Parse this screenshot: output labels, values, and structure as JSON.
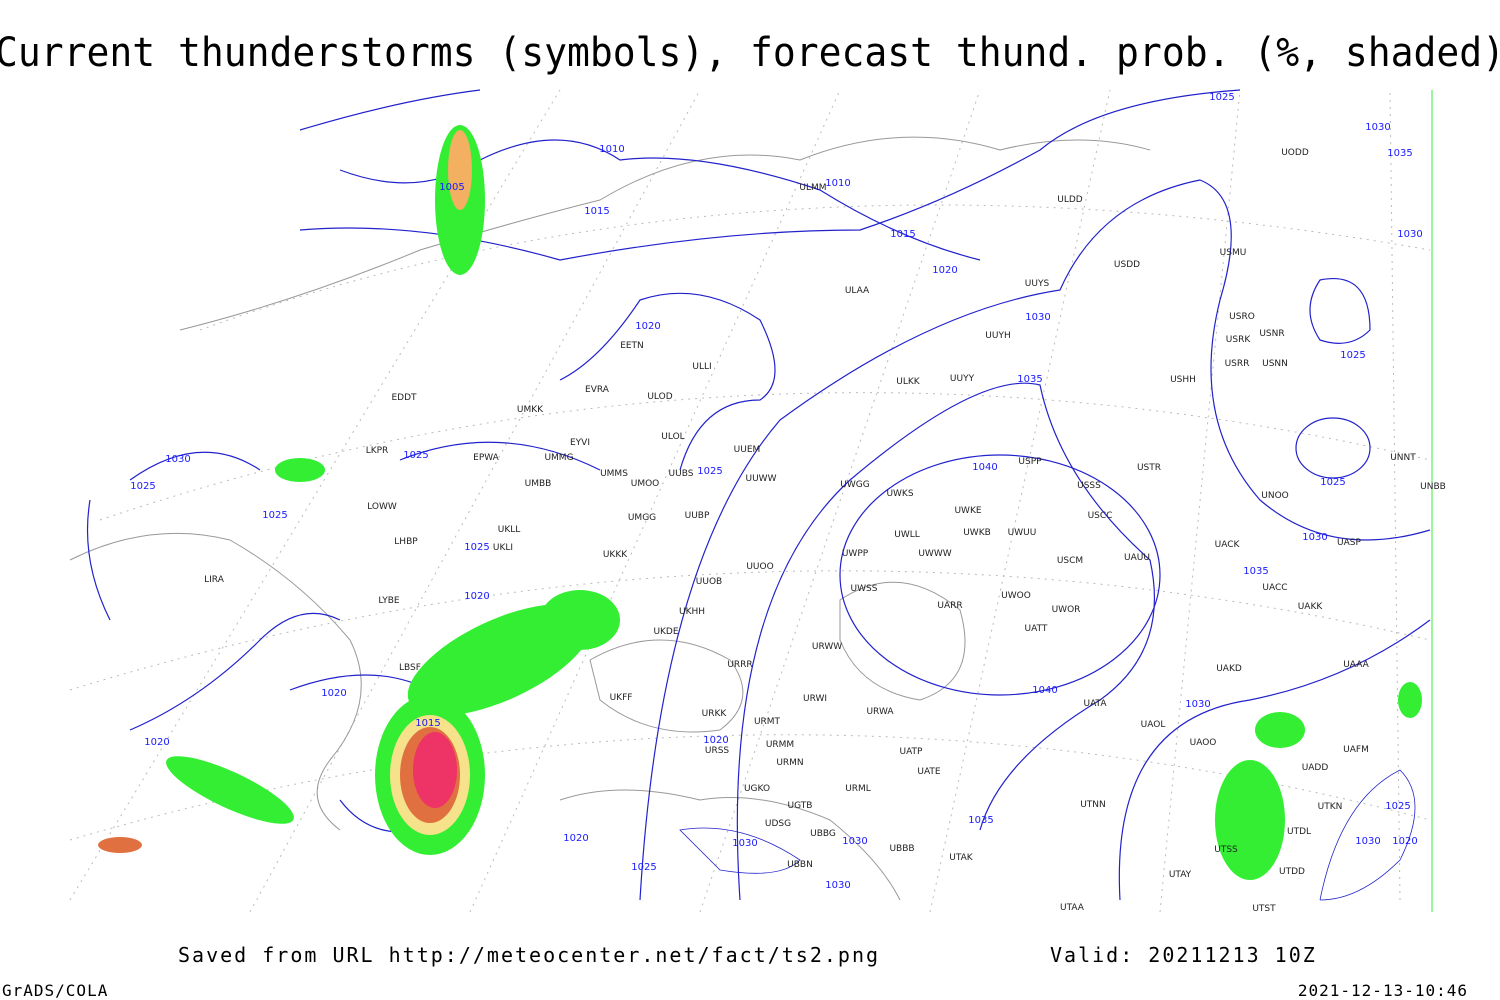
{
  "header": {
    "title": "Current thunderstorms (symbols), forecast thund. prob. (%, shaded)"
  },
  "isobar_labels": [
    1010,
    1005,
    1015,
    1010,
    1015,
    1020,
    1020,
    1025,
    1030,
    1035,
    1030,
    1025,
    1030,
    1035,
    1040,
    1025,
    1025,
    1030,
    1035,
    1040,
    1030,
    1035,
    1030,
    1025,
    1025,
    1025,
    1025,
    1020,
    1020,
    1020,
    1015,
    1020,
    1020,
    1025,
    1030,
    1030,
    1030,
    1025,
    1030,
    1020
  ],
  "stations": [
    "ULDD",
    "ULMM",
    "UUYS",
    "ULAA",
    "USDD",
    "USMU",
    "USRO",
    "USRK",
    "USNR",
    "USRR",
    "USNN",
    "USHH",
    "UUYH",
    "UUYY",
    "ULKK",
    "ULOD",
    "EVRA",
    "EETN",
    "ULLI",
    "EDDT",
    "UMKK",
    "EYVI",
    "ULOL",
    "UUEM",
    "UMMG",
    "EPWA",
    "LKPR",
    "UMMS",
    "UMOO",
    "UUBS",
    "UUWW",
    "UWGG",
    "UWKS",
    "UWKE",
    "UWKB",
    "UWUU",
    "USSS",
    "USTR",
    "USPP",
    "USCC",
    "UACK",
    "UASP",
    "UNOO",
    "UNNT",
    "UNBB",
    "UMBB",
    "LOWW",
    "UKLL",
    "UKLI",
    "LHBP",
    "UUBP",
    "UMGG",
    "UWLL",
    "UWPP",
    "UWWW",
    "USCM",
    "UAUU",
    "UKKK",
    "UUOO",
    "UUOB",
    "LIRA",
    "LYBE",
    "UWSS",
    "UWOO",
    "UARR",
    "UWOR",
    "UATT",
    "UACC",
    "UAKK",
    "UKHH",
    "UKDE",
    "URWW",
    "LBSF",
    "URRR",
    "UAKD",
    "UAAA",
    "UKFF",
    "URKK",
    "URWI",
    "URWA",
    "UATA",
    "URMT",
    "UAOL",
    "URMM",
    "URSS",
    "UAOO",
    "UAFM",
    "UATP",
    "URMN",
    "UATE",
    "UADD",
    "URML",
    "UGKO",
    "UGTB",
    "UTNN",
    "UTKN",
    "UDSG",
    "UTDL",
    "UBBG",
    "UBBB",
    "UTSS",
    "UBBN",
    "UTAK",
    "UTDD",
    "UTAY",
    "UTAA",
    "UTST",
    "UODD"
  ],
  "footer": {
    "source": "Saved from URL http://meteocenter.net/fact/ts2.png",
    "valid": "Valid: 20211213 10Z",
    "software": "GrADS/COLA",
    "timestamp": "2021-12-13-10:46"
  }
}
